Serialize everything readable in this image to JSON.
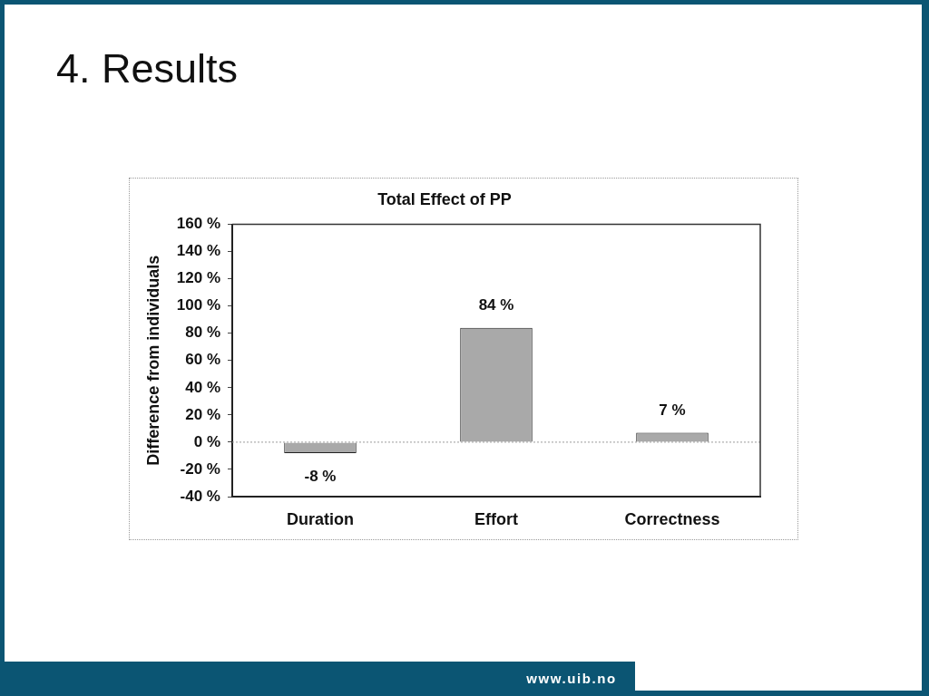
{
  "chart_data": {
    "type": "bar",
    "title": "Total Effect of PP",
    "ylabel": "Difference from individuals",
    "categories": [
      "Duration",
      "Effort",
      "Correctness"
    ],
    "values": [
      -8,
      84,
      7
    ],
    "value_labels": [
      "-8 %",
      "84 %",
      "7 %"
    ],
    "color": "#a9a9a9",
    "ylim": [
      -40,
      160
    ],
    "yticks": [
      {
        "value": -40,
        "label": "-40 %"
      },
      {
        "value": -20,
        "label": "-20 %"
      },
      {
        "value": 0,
        "label": "0 %"
      },
      {
        "value": 20,
        "label": "20 %"
      },
      {
        "value": 40,
        "label": "40 %"
      },
      {
        "value": 60,
        "label": "60 %"
      },
      {
        "value": 80,
        "label": "80 %"
      },
      {
        "value": 100,
        "label": "100 %"
      },
      {
        "value": 120,
        "label": "120 %"
      },
      {
        "value": 140,
        "label": "140 %"
      },
      {
        "value": 160,
        "label": "160 %"
      }
    ],
    "ref_lines": [
      {
        "axis": "y",
        "value": 0,
        "color": "#9a9a9a",
        "line_style": "dotted"
      }
    ],
    "annotations": [
      "4. Results",
      "www.uib.no"
    ]
  }
}
